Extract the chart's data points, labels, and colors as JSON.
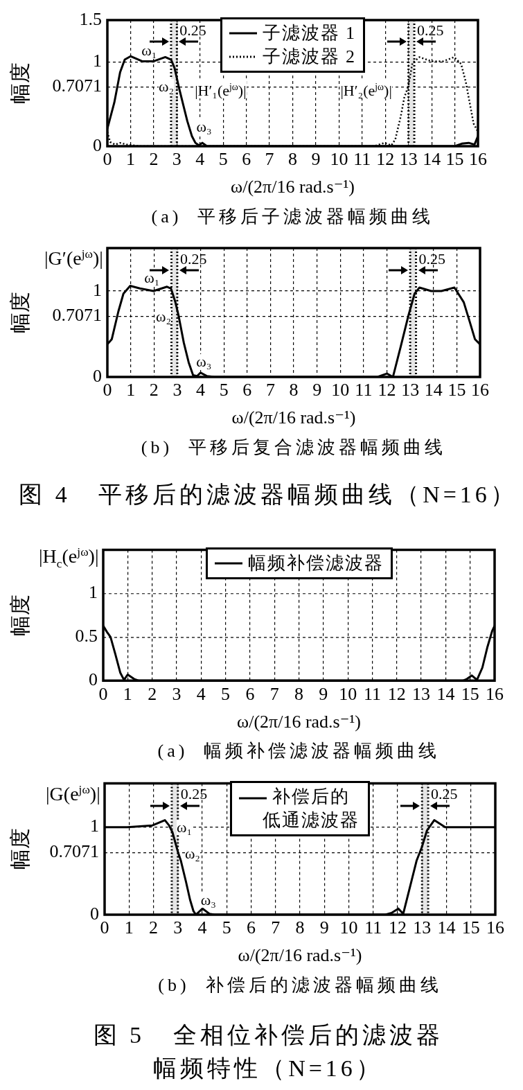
{
  "chart_data": [
    {
      "type": "line",
      "title": "(a)  平移后子滤波器幅频曲线",
      "xlabel": "ω/(2π/16 rad.s⁻¹)",
      "ylabel": "幅度",
      "xlim": [
        0,
        16
      ],
      "ylim": [
        0,
        1.5
      ],
      "xticks": [
        0,
        1,
        2,
        3,
        4,
        5,
        6,
        7,
        8,
        9,
        10,
        11,
        12,
        13,
        14,
        15,
        16
      ],
      "yticks": [
        0,
        0.7071,
        1,
        1.5
      ],
      "grid": true,
      "legend": "top",
      "series": [
        {
          "name": "子滤波器 1",
          "color": "#000000",
          "line_style": "solid",
          "x": [
            0,
            0.3,
            0.55,
            0.75,
            1,
            1.5,
            2,
            2.5,
            2.75,
            2.9,
            3.08,
            3.25,
            3.45,
            3.65,
            3.8,
            3.95,
            4.1,
            4.3,
            15,
            15.3,
            15.6,
            15.85,
            16
          ],
          "values": [
            0.21,
            0.52,
            0.88,
            1.03,
            1.07,
            1.01,
            1.01,
            1.06,
            1.03,
            0.93,
            0.71,
            0.52,
            0.3,
            0.12,
            0.04,
            0.01,
            0.04,
            0,
            0,
            0.03,
            0.04,
            0.02,
            0.12
          ]
        },
        {
          "name": "子滤波器 2",
          "color": "#000000",
          "line_style": "dotted",
          "x": [
            0,
            0.12,
            0.33,
            0.55,
            0.84,
            1.13,
            1.4,
            11.5,
            11.97,
            12.26,
            12.43,
            12.67,
            12.82,
            13,
            13.17,
            13.47,
            14,
            14.5,
            14.97,
            15.27,
            15.47,
            15.66,
            15.81,
            16
          ],
          "values": [
            0.17,
            0.05,
            0.02,
            0.04,
            0.02,
            0.01,
            0,
            0,
            0.04,
            0.01,
            0.08,
            0.36,
            0.58,
            0.72,
            0.99,
            1.06,
            1.01,
            1.01,
            1.06,
            0.98,
            0.77,
            0.49,
            0.27,
            0.17
          ]
        }
      ],
      "bands": [
        {
          "axis": "x",
          "from": 2.75,
          "to": 3,
          "label": "0.25",
          "color": "#e6e6e6"
        },
        {
          "axis": "x",
          "from": 13,
          "to": 13.25,
          "label": "0.25",
          "color": "#e6e6e6"
        }
      ],
      "annotations": [
        "ω₁",
        "ω₂",
        "ω₃",
        "|H′₁(e$^{jω}$)|",
        "|H′₂(e$^{jω}$)|"
      ]
    },
    {
      "type": "line",
      "title": "(b)  平移后复合滤波器幅频曲线",
      "xlabel": "ω/(2π/16 rad.s⁻¹)",
      "ylabel": "幅度",
      "xlim": [
        0,
        16
      ],
      "ylim": [
        0,
        1.5
      ],
      "xticks": [
        0,
        1,
        2,
        3,
        4,
        5,
        6,
        7,
        8,
        9,
        10,
        11,
        12,
        13,
        14,
        15,
        16
      ],
      "yticks": [
        0,
        0.7071,
        1
      ],
      "grid": true,
      "series": [
        {
          "color": "#000000",
          "line_style": "solid",
          "x": [
            0,
            0.19,
            0.47,
            0.69,
            0.98,
            1.4,
            1.98,
            2.56,
            2.73,
            2.92,
            3.06,
            3.28,
            3.49,
            3.68,
            3.85,
            4,
            4.28,
            4.6,
            11.6,
            12,
            12.26,
            12.6,
            12.93,
            13.19,
            13.4,
            13.9,
            14.34,
            14.9,
            15.3,
            15.56,
            15.78,
            16
          ],
          "values": [
            0.38,
            0.44,
            0.76,
            0.97,
            1.06,
            1.03,
            1,
            1.05,
            1.03,
            0.87,
            0.71,
            0.4,
            0.17,
            0.02,
            0.01,
            0.05,
            0.01,
            0,
            0,
            0.04,
            0,
            0.36,
            0.72,
            0.97,
            1.04,
            1,
            1,
            1.04,
            0.87,
            0.64,
            0.44,
            0.38
          ]
        }
      ],
      "bands": [
        {
          "axis": "x",
          "from": 2.75,
          "to": 3,
          "label": "0.25",
          "color": "#e6e6e6"
        },
        {
          "axis": "x",
          "from": 13,
          "to": 13.25,
          "label": "0.25",
          "color": "#e6e6e6"
        }
      ],
      "annotations": [
        "|G′(e$^{jω}$)|",
        "ω₁",
        "ω₂",
        "ω₃"
      ]
    },
    {
      "type": "other",
      "title": "图 4   平移后的滤波器幅频曲线（N=16）"
    },
    {
      "type": "line",
      "title": "(a)  幅频补偿滤波器幅频曲线",
      "xlabel": "ω/(2π/16 rad.s⁻¹)",
      "ylabel": "幅度",
      "xlim": [
        0,
        16
      ],
      "ylim": [
        0,
        1.5
      ],
      "xticks": [
        0,
        1,
        2,
        3,
        4,
        5,
        6,
        7,
        8,
        9,
        10,
        11,
        12,
        13,
        14,
        15,
        16
      ],
      "yticks": [
        0,
        0.5,
        1
      ],
      "grid": true,
      "legend": "top",
      "series": [
        {
          "name": "幅频补偿滤波器",
          "color": "#000000",
          "line_style": "solid",
          "x": [
            0,
            0.15,
            0.3,
            0.5,
            0.7,
            0.85,
            1,
            1.26,
            1.46,
            14.7,
            14.87,
            15.07,
            15.28,
            15.5,
            15.7,
            15.9,
            16
          ],
          "values": [
            0.63,
            0.56,
            0.5,
            0.3,
            0.09,
            0.01,
            0.07,
            0.02,
            0,
            0,
            0.02,
            0.06,
            0.01,
            0.15,
            0.38,
            0.57,
            0.63
          ]
        }
      ],
      "annotations": [
        "|H$_{c}$(e$^{jω}$)|"
      ]
    },
    {
      "type": "line",
      "title": "(b)  补偿后的滤波器幅频曲线",
      "xlabel": "ω/(2π/16 rad.s⁻¹)",
      "ylabel": "幅度",
      "xlim": [
        0,
        16
      ],
      "ylim": [
        0,
        1.5
      ],
      "xticks": [
        0,
        1,
        2,
        3,
        4,
        5,
        6,
        7,
        8,
        9,
        10,
        11,
        12,
        13,
        14,
        15,
        16
      ],
      "yticks": [
        0,
        0.7071,
        1
      ],
      "grid": true,
      "legend": "top",
      "series": [
        {
          "name": "补偿后的低通滤波器",
          "color": "#000000",
          "line_style": "solid",
          "x": [
            0,
            0.93,
            1.96,
            2.47,
            2.64,
            2.78,
            3,
            3.12,
            3.33,
            3.5,
            3.64,
            3.74,
            4.01,
            4.29,
            4.5,
            11.5,
            11.75,
            12.03,
            12.23,
            12.5,
            12.78,
            12.99,
            13.2,
            13.5,
            13.95,
            16
          ],
          "values": [
            1,
            1,
            1.02,
            1.08,
            1.02,
            0.94,
            0.72,
            0.62,
            0.38,
            0.17,
            0.04,
            0,
            0.07,
            0.01,
            0,
            0,
            0.02,
            0.07,
            0.01,
            0.31,
            0.62,
            0.77,
            0.96,
            1.08,
            1,
            1
          ]
        }
      ],
      "bands": [
        {
          "axis": "x",
          "from": 2.75,
          "to": 3,
          "label": "0.25",
          "color": "#e6e6e6"
        },
        {
          "axis": "x",
          "from": 13,
          "to": 13.25,
          "label": "0.25",
          "color": "#e6e6e6"
        }
      ],
      "annotations": [
        "|G(e$^{jω}$)|",
        "ω₁",
        "ω₂",
        "ω₃"
      ]
    },
    {
      "type": "other",
      "title": "图 5   全相位补偿后的滤波器幅频特性（N=16）"
    }
  ]
}
